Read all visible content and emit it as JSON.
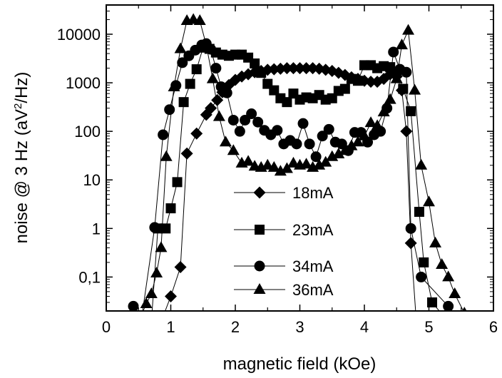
{
  "chart_data": {
    "type": "scatter",
    "title": "",
    "xlabel": "magnetic field (kOe)",
    "ylabel": "noise @ 3 Hz (aV²/Hz)",
    "xlim": [
      0,
      6
    ],
    "ylim": [
      0.02,
      40000
    ],
    "yscale": "log",
    "x_ticks": [
      0,
      1,
      2,
      3,
      4,
      5,
      6
    ],
    "x_tick_labels": [
      "0",
      "1",
      "2",
      "3",
      "4",
      "5",
      "6"
    ],
    "y_ticks": [
      0.1,
      1,
      10,
      100,
      1000,
      10000
    ],
    "y_tick_labels": [
      "0,1",
      "1",
      "10",
      "100",
      "1000",
      "10000"
    ],
    "grid": false,
    "legend_position": "center",
    "series": [
      {
        "name": "18mA",
        "marker": "diamond",
        "points": [
          [
            0.85,
            0.012
          ],
          [
            1.0,
            0.04
          ],
          [
            1.15,
            0.16
          ],
          [
            1.25,
            35
          ],
          [
            1.4,
            90
          ],
          [
            1.55,
            220
          ],
          [
            1.62,
            300
          ],
          [
            1.72,
            440
          ],
          [
            1.8,
            640
          ],
          [
            1.9,
            900
          ],
          [
            2.0,
            1150
          ],
          [
            2.1,
            1350
          ],
          [
            2.2,
            1500
          ],
          [
            2.3,
            1650
          ],
          [
            2.4,
            1750
          ],
          [
            2.5,
            1850
          ],
          [
            2.6,
            1900
          ],
          [
            2.7,
            1950
          ],
          [
            2.8,
            2000
          ],
          [
            2.9,
            2000
          ],
          [
            3.0,
            2000
          ],
          [
            3.1,
            2000
          ],
          [
            3.2,
            2000
          ],
          [
            3.3,
            1950
          ],
          [
            3.4,
            1850
          ],
          [
            3.5,
            1750
          ],
          [
            3.6,
            1600
          ],
          [
            3.7,
            1450
          ],
          [
            3.8,
            1300
          ],
          [
            3.9,
            1200
          ],
          [
            4.0,
            1100
          ],
          [
            4.1,
            1050
          ],
          [
            4.2,
            1050
          ],
          [
            4.3,
            1200
          ],
          [
            4.4,
            1500
          ],
          [
            4.5,
            1350
          ],
          [
            4.58,
            700
          ],
          [
            4.65,
            100
          ],
          [
            4.72,
            0.5
          ],
          [
            4.8,
            0.015
          ]
        ]
      },
      {
        "name": "23mA",
        "marker": "square",
        "points": [
          [
            0.7,
            0.012
          ],
          [
            0.8,
            1
          ],
          [
            0.92,
            1
          ],
          [
            1.0,
            2.6
          ],
          [
            1.1,
            9
          ],
          [
            1.2,
            400
          ],
          [
            1.3,
            950
          ],
          [
            1.4,
            1900
          ],
          [
            1.5,
            5300
          ],
          [
            1.6,
            5000
          ],
          [
            1.7,
            4200
          ],
          [
            1.8,
            3800
          ],
          [
            1.9,
            3600
          ],
          [
            2.0,
            3800
          ],
          [
            2.1,
            3800
          ],
          [
            2.2,
            3300
          ],
          [
            2.3,
            2500
          ],
          [
            2.4,
            1600
          ],
          [
            2.5,
            950
          ],
          [
            2.6,
            700
          ],
          [
            2.7,
            480
          ],
          [
            2.8,
            400
          ],
          [
            2.9,
            600
          ],
          [
            3.0,
            450
          ],
          [
            3.1,
            500
          ],
          [
            3.2,
            480
          ],
          [
            3.3,
            560
          ],
          [
            3.4,
            450
          ],
          [
            3.5,
            480
          ],
          [
            3.6,
            680
          ],
          [
            3.7,
            750
          ],
          [
            3.8,
            1200
          ],
          [
            3.9,
            1100
          ],
          [
            4.0,
            2300
          ],
          [
            4.1,
            2300
          ],
          [
            4.2,
            2000
          ],
          [
            4.3,
            2200
          ],
          [
            4.4,
            2100
          ],
          [
            4.5,
            1700
          ],
          [
            4.6,
            750
          ],
          [
            4.72,
            260
          ],
          [
            4.85,
            2.2
          ],
          [
            4.92,
            0.2
          ],
          [
            5.05,
            0.03
          ],
          [
            5.3,
            0.012
          ]
        ]
      },
      {
        "name": "34mA",
        "marker": "circle",
        "points": [
          [
            0.42,
            0.025
          ],
          [
            0.55,
            0.015
          ],
          [
            0.75,
            1.05
          ],
          [
            0.88,
            85
          ],
          [
            0.98,
            280
          ],
          [
            1.08,
            880
          ],
          [
            1.18,
            2600
          ],
          [
            1.28,
            3600
          ],
          [
            1.38,
            4700
          ],
          [
            1.48,
            6000
          ],
          [
            1.55,
            6400
          ],
          [
            1.62,
            4900
          ],
          [
            1.7,
            2000
          ],
          [
            1.78,
            830
          ],
          [
            1.87,
            620
          ],
          [
            1.97,
            170
          ],
          [
            2.07,
            100
          ],
          [
            2.15,
            170
          ],
          [
            2.25,
            230
          ],
          [
            2.35,
            155
          ],
          [
            2.45,
            105
          ],
          [
            2.55,
            85
          ],
          [
            2.65,
            105
          ],
          [
            2.75,
            55
          ],
          [
            2.85,
            65
          ],
          [
            2.95,
            55
          ],
          [
            3.05,
            145
          ],
          [
            3.15,
            55
          ],
          [
            3.25,
            30
          ],
          [
            3.35,
            80
          ],
          [
            3.45,
            110
          ],
          [
            3.55,
            60
          ],
          [
            3.65,
            55
          ],
          [
            3.75,
            40
          ],
          [
            3.85,
            95
          ],
          [
            3.95,
            95
          ],
          [
            4.05,
            60
          ],
          [
            4.15,
            85
          ],
          [
            4.25,
            100
          ],
          [
            4.35,
            300
          ],
          [
            4.45,
            4300
          ],
          [
            4.55,
            1900
          ],
          [
            4.65,
            1650
          ],
          [
            4.72,
            1.0
          ],
          [
            4.88,
            0.1
          ],
          [
            5.3,
            0.025
          ],
          [
            5.45,
            0.012
          ]
        ]
      },
      {
        "name": "36mA",
        "marker": "triangle",
        "points": [
          [
            0.5,
            0.012
          ],
          [
            0.62,
            0.028
          ],
          [
            0.7,
            0.045
          ],
          [
            0.78,
            0.12
          ],
          [
            0.85,
            0.4
          ],
          [
            0.93,
            30
          ],
          [
            1.05,
            820
          ],
          [
            1.15,
            5000
          ],
          [
            1.25,
            19000
          ],
          [
            1.35,
            20000
          ],
          [
            1.45,
            19000
          ],
          [
            1.55,
            6000
          ],
          [
            1.65,
            1200
          ],
          [
            1.75,
            200
          ],
          [
            1.85,
            60
          ],
          [
            1.97,
            40
          ],
          [
            2.1,
            22
          ],
          [
            2.2,
            24
          ],
          [
            2.3,
            19
          ],
          [
            2.4,
            18
          ],
          [
            2.5,
            20
          ],
          [
            2.6,
            18
          ],
          [
            2.7,
            15
          ],
          [
            2.8,
            17
          ],
          [
            2.9,
            22
          ],
          [
            3.0,
            20
          ],
          [
            3.1,
            21
          ],
          [
            3.2,
            18
          ],
          [
            3.3,
            20
          ],
          [
            3.4,
            23
          ],
          [
            3.5,
            30
          ],
          [
            3.6,
            34
          ],
          [
            3.7,
            40
          ],
          [
            3.8,
            50
          ],
          [
            3.9,
            60
          ],
          [
            4.0,
            80
          ],
          [
            4.1,
            150
          ],
          [
            4.2,
            130
          ],
          [
            4.3,
            250
          ],
          [
            4.4,
            450
          ],
          [
            4.5,
            1200
          ],
          [
            4.58,
            6000
          ],
          [
            4.68,
            12000
          ],
          [
            4.78,
            700
          ],
          [
            4.88,
            20
          ],
          [
            5.0,
            3.5
          ],
          [
            5.1,
            0.5
          ],
          [
            5.2,
            0.18
          ],
          [
            5.3,
            0.1
          ],
          [
            5.4,
            0.045
          ],
          [
            5.55,
            0.018
          ]
        ]
      }
    ]
  }
}
